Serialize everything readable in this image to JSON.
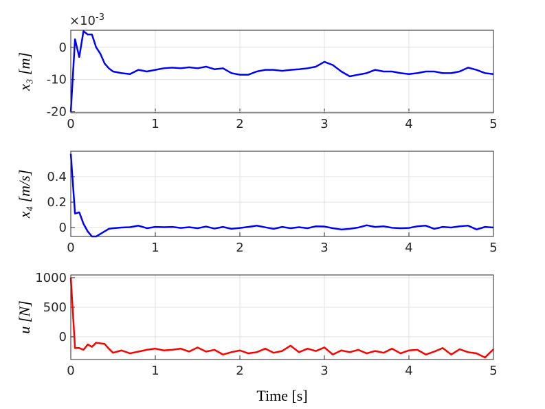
{
  "chart_data": [
    {
      "type": "line",
      "ylabel": "x₃ [m]",
      "y_multiplier": {
        "base": "×10",
        "exponent": "-3"
      },
      "xlim": [
        0,
        5
      ],
      "xticks": [
        0,
        1,
        2,
        3,
        4,
        5
      ],
      "ylim": [
        -20.3,
        5.3
      ],
      "yticks": [
        -20,
        -10,
        0
      ],
      "grid": true,
      "series": [
        {
          "color": "#0000ff",
          "x": [
            0,
            0.05,
            0.1,
            0.15,
            0.2,
            0.25,
            0.3,
            0.35,
            0.4,
            0.45,
            0.5,
            0.6,
            0.7,
            0.8,
            0.9,
            1.0,
            1.1,
            1.2,
            1.3,
            1.4,
            1.5,
            1.6,
            1.7,
            1.8,
            1.9,
            2.0,
            2.1,
            2.2,
            2.3,
            2.4,
            2.5,
            2.6,
            2.7,
            2.8,
            2.9,
            3.0,
            3.1,
            3.2,
            3.3,
            3.4,
            3.5,
            3.6,
            3.7,
            3.8,
            3.9,
            4.0,
            4.1,
            4.2,
            4.3,
            4.4,
            4.5,
            4.6,
            4.7,
            4.8,
            4.9,
            5.0
          ],
          "values": [
            -20,
            2.5,
            -3,
            5,
            4,
            4,
            0,
            -2,
            -5,
            -6.5,
            -7.5,
            -8,
            -8.3,
            -7,
            -7.5,
            -7,
            -6.5,
            -6.3,
            -6.5,
            -6.2,
            -6.5,
            -6,
            -6.8,
            -6.5,
            -8,
            -8.5,
            -8.5,
            -7.5,
            -7,
            -7,
            -7.3,
            -7,
            -6.8,
            -6.5,
            -6,
            -4.5,
            -5.5,
            -7.5,
            -9,
            -8.5,
            -8,
            -7,
            -7.5,
            -7.5,
            -8,
            -8.3,
            -8,
            -7.5,
            -7.5,
            -8,
            -8,
            -7.5,
            -6.3,
            -7,
            -8,
            -8.3
          ]
        }
      ]
    },
    {
      "type": "line",
      "ylabel": "x₄ [m/s]",
      "xlim": [
        0,
        5
      ],
      "xticks": [
        0,
        1,
        2,
        3,
        4,
        5
      ],
      "ylim": [
        -0.07,
        0.6
      ],
      "yticks": [
        0,
        0.2,
        0.4
      ],
      "grid": true,
      "series": [
        {
          "color": "#0000ff",
          "x": [
            0,
            0.05,
            0.1,
            0.15,
            0.2,
            0.25,
            0.3,
            0.35,
            0.4,
            0.45,
            0.5,
            0.6,
            0.7,
            0.8,
            0.9,
            1.0,
            1.1,
            1.2,
            1.3,
            1.4,
            1.5,
            1.6,
            1.7,
            1.8,
            1.9,
            2.0,
            2.1,
            2.2,
            2.3,
            2.4,
            2.5,
            2.6,
            2.7,
            2.8,
            2.9,
            3.0,
            3.1,
            3.2,
            3.3,
            3.4,
            3.5,
            3.6,
            3.7,
            3.8,
            3.9,
            4.0,
            4.1,
            4.2,
            4.3,
            4.4,
            4.5,
            4.6,
            4.7,
            4.8,
            4.9,
            5.0
          ],
          "values": [
            0.58,
            0.11,
            0.12,
            0.03,
            -0.03,
            -0.07,
            -0.07,
            -0.05,
            -0.03,
            -0.01,
            -0.005,
            0,
            0.003,
            0.015,
            -0.005,
            0.005,
            0.003,
            0.005,
            -0.003,
            0.003,
            -0.005,
            0.008,
            -0.008,
            0.005,
            -0.01,
            -0.003,
            0.005,
            0.015,
            0.002,
            -0.01,
            0.005,
            -0.005,
            0.003,
            -0.005,
            0.01,
            0.008,
            -0.005,
            -0.015,
            -0.01,
            0,
            0.018,
            0.005,
            0.01,
            -0.002,
            -0.005,
            -0.003,
            0.01,
            0.015,
            -0.01,
            0.005,
            0,
            0.01,
            0.015,
            -0.015,
            0.005,
            0
          ]
        }
      ]
    },
    {
      "type": "line",
      "ylabel": "u [N]",
      "xlabel": "Time [s]",
      "xlim": [
        0,
        5
      ],
      "xticks": [
        0,
        1,
        2,
        3,
        4,
        5
      ],
      "ylim": [
        -384,
        1046
      ],
      "yticks": [
        0,
        500,
        1000
      ],
      "grid": true,
      "series": [
        {
          "color": "#ff0000",
          "x": [
            0,
            0.05,
            0.1,
            0.15,
            0.2,
            0.25,
            0.3,
            0.35,
            0.4,
            0.45,
            0.5,
            0.6,
            0.7,
            0.8,
            0.9,
            1.0,
            1.1,
            1.2,
            1.3,
            1.4,
            1.5,
            1.6,
            1.7,
            1.8,
            1.9,
            2.0,
            2.1,
            2.2,
            2.3,
            2.4,
            2.5,
            2.6,
            2.7,
            2.8,
            2.9,
            3.0,
            3.1,
            3.2,
            3.3,
            3.4,
            3.5,
            3.6,
            3.7,
            3.8,
            3.9,
            4.0,
            4.1,
            4.2,
            4.3,
            4.4,
            4.5,
            4.6,
            4.7,
            4.8,
            4.9,
            5.0
          ],
          "values": [
            1000,
            -190,
            -190,
            -220,
            -130,
            -170,
            -100,
            -110,
            -120,
            -200,
            -270,
            -230,
            -280,
            -250,
            -220,
            -200,
            -230,
            -220,
            -200,
            -250,
            -180,
            -250,
            -220,
            -300,
            -260,
            -230,
            -280,
            -260,
            -200,
            -270,
            -240,
            -150,
            -260,
            -200,
            -240,
            -180,
            -300,
            -230,
            -260,
            -220,
            -280,
            -240,
            -270,
            -200,
            -280,
            -230,
            -220,
            -300,
            -250,
            -190,
            -300,
            -210,
            -260,
            -280,
            -350,
            -210
          ]
        }
      ]
    }
  ]
}
